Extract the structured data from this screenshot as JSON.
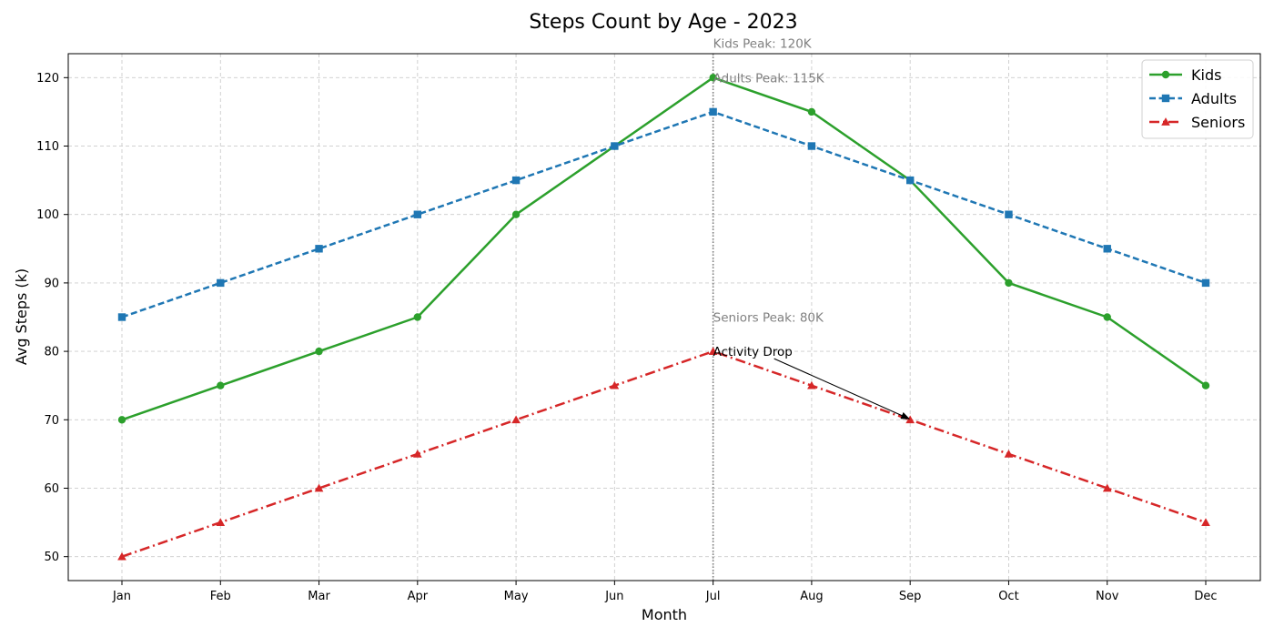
{
  "chart_data": {
    "type": "line",
    "title": "Steps Count by Age - 2023",
    "xlabel": "Month",
    "ylabel": "Avg Steps (k)",
    "categories": [
      "Jan",
      "Feb",
      "Mar",
      "Apr",
      "May",
      "Jun",
      "Jul",
      "Aug",
      "Sep",
      "Oct",
      "Nov",
      "Dec"
    ],
    "yticks": [
      50,
      60,
      70,
      80,
      90,
      100,
      110,
      120
    ],
    "ylim": [
      46.5,
      123.5
    ],
    "grid": true,
    "legend_position": "top-right",
    "series": [
      {
        "name": "Kids",
        "color": "#2ca02c",
        "line_style": "solid",
        "marker": "circle",
        "values": [
          70,
          75,
          80,
          85,
          100,
          110,
          120,
          115,
          105,
          90,
          85,
          75
        ]
      },
      {
        "name": "Adults",
        "color": "#1f77b4",
        "line_style": "dashed",
        "marker": "square",
        "values": [
          85,
          90,
          95,
          100,
          105,
          110,
          115,
          110,
          105,
          100,
          95,
          90
        ]
      },
      {
        "name": "Seniors",
        "color": "#d62728",
        "line_style": "dashdot",
        "marker": "triangle",
        "values": [
          50,
          55,
          60,
          65,
          70,
          75,
          80,
          75,
          70,
          65,
          60,
          55
        ]
      }
    ],
    "vertical_marker": {
      "x": "Jul",
      "color": "#808080",
      "line_style": "dotted"
    },
    "annotations": [
      {
        "text": "Kids Peak: 120K",
        "x": "Jul",
        "y": 125,
        "color": "#808080"
      },
      {
        "text": "Adults Peak: 115K",
        "x": "Jul",
        "y": 120,
        "color": "#808080"
      },
      {
        "text": "Seniors Peak: 80K",
        "x": "Jul",
        "y": 85,
        "color": "#808080"
      },
      {
        "text": "Activity Drop",
        "x": "Jul",
        "y": 80,
        "arrow_to": {
          "x": "Sep",
          "y": 70
        },
        "color": "#000000"
      }
    ]
  }
}
